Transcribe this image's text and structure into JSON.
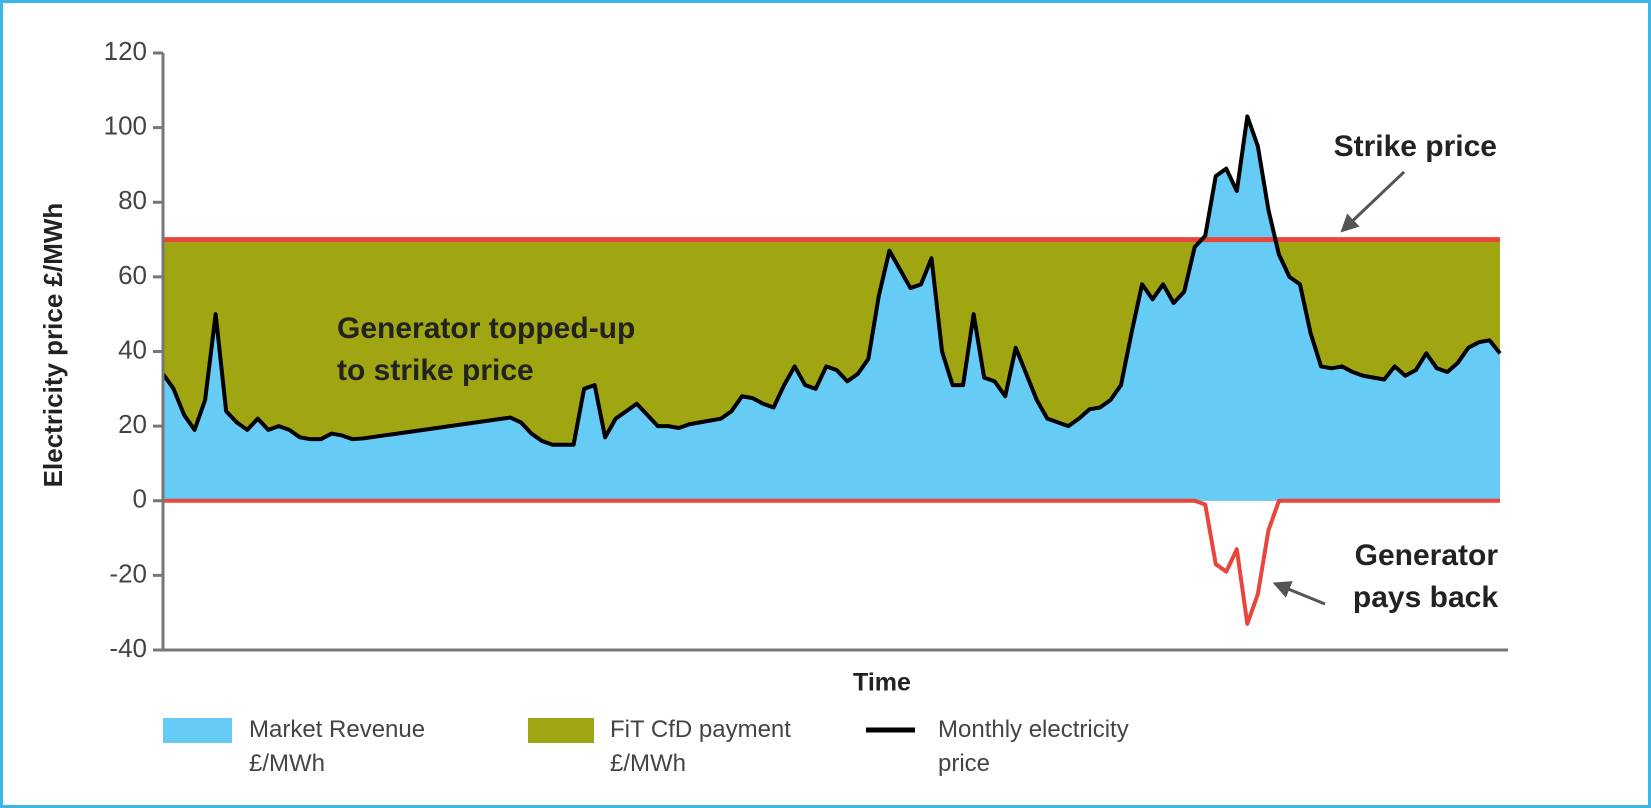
{
  "chart_data": {
    "type": "area",
    "ylabel": "Electricity price £/MWh",
    "xlabel": "Time",
    "ylim": [
      -40,
      120
    ],
    "yticks": [
      -40,
      -20,
      0,
      20,
      40,
      60,
      80,
      100,
      120
    ],
    "strike_price": {
      "value": 70,
      "color": "#e8453c"
    },
    "series": [
      {
        "name": "Market Revenue £/MWh",
        "color": "#66ccf5"
      },
      {
        "name": "FiT CfD payment £/MWh",
        "color": "#a0a612"
      },
      {
        "name": "Monthly electricity price",
        "color": "#000000",
        "values": [
          34,
          30,
          23,
          19,
          27,
          50,
          24,
          21,
          19,
          22,
          19,
          20,
          19,
          17,
          16.5,
          16.5,
          18,
          17.5,
          16.5,
          16.7,
          17.1,
          17.5,
          17.9,
          18.3,
          18.7,
          19.1,
          19.5,
          19.9,
          20.3,
          20.7,
          21.1,
          21.5,
          21.9,
          22.3,
          21,
          18,
          16,
          15,
          15,
          15,
          30,
          31,
          17,
          22,
          24,
          26,
          23,
          20,
          20,
          19.5,
          20.5,
          21,
          21.5,
          22,
          24,
          28,
          27.5,
          26,
          25,
          31,
          36,
          31,
          30,
          36,
          35,
          32,
          34,
          38,
          55,
          67,
          62,
          57,
          58,
          65,
          40,
          31,
          31,
          50,
          33,
          32,
          28,
          41,
          34,
          27,
          22,
          21,
          20,
          22,
          24.5,
          25,
          27,
          31,
          45,
          58,
          54,
          58,
          53,
          56,
          68,
          71,
          87,
          89,
          83,
          103,
          95,
          78,
          66,
          60,
          58,
          45,
          36,
          35.5,
          36,
          34.5,
          33.5,
          33,
          32.5,
          36,
          33.5,
          35,
          39.5,
          35.5,
          34.5,
          37,
          41,
          42.5,
          43,
          39.5
        ]
      }
    ],
    "payback": {
      "color": "#e8453c",
      "values": [
        0,
        0,
        0,
        0,
        0,
        0,
        0,
        0,
        0,
        0,
        0,
        0,
        0,
        0,
        0,
        0,
        0,
        0,
        0,
        0,
        0,
        0,
        0,
        0,
        0,
        0,
        0,
        0,
        0,
        0,
        0,
        0,
        0,
        0,
        0,
        0,
        0,
        0,
        0,
        0,
        0,
        0,
        0,
        0,
        0,
        0,
        0,
        0,
        0,
        0,
        0,
        0,
        0,
        0,
        0,
        0,
        0,
        0,
        0,
        0,
        0,
        0,
        0,
        0,
        0,
        0,
        0,
        0,
        0,
        0,
        0,
        0,
        0,
        0,
        0,
        0,
        0,
        0,
        0,
        0,
        0,
        0,
        0,
        0,
        0,
        0,
        0,
        0,
        0,
        0,
        0,
        0,
        0,
        0,
        0,
        0,
        0,
        0,
        0,
        -1,
        -17,
        -19,
        -13,
        -33,
        -25,
        -8,
        0,
        0,
        0,
        0,
        0,
        0,
        0,
        0,
        0,
        0,
        0,
        0,
        0,
        0,
        0,
        0,
        0,
        0,
        0,
        0,
        0,
        0
      ]
    },
    "annotations": [
      {
        "lines": [
          "Strike price"
        ]
      },
      {
        "lines": [
          "Generator topped-up",
          "to strike price"
        ]
      },
      {
        "lines": [
          "Generator",
          "pays back"
        ]
      }
    ]
  }
}
